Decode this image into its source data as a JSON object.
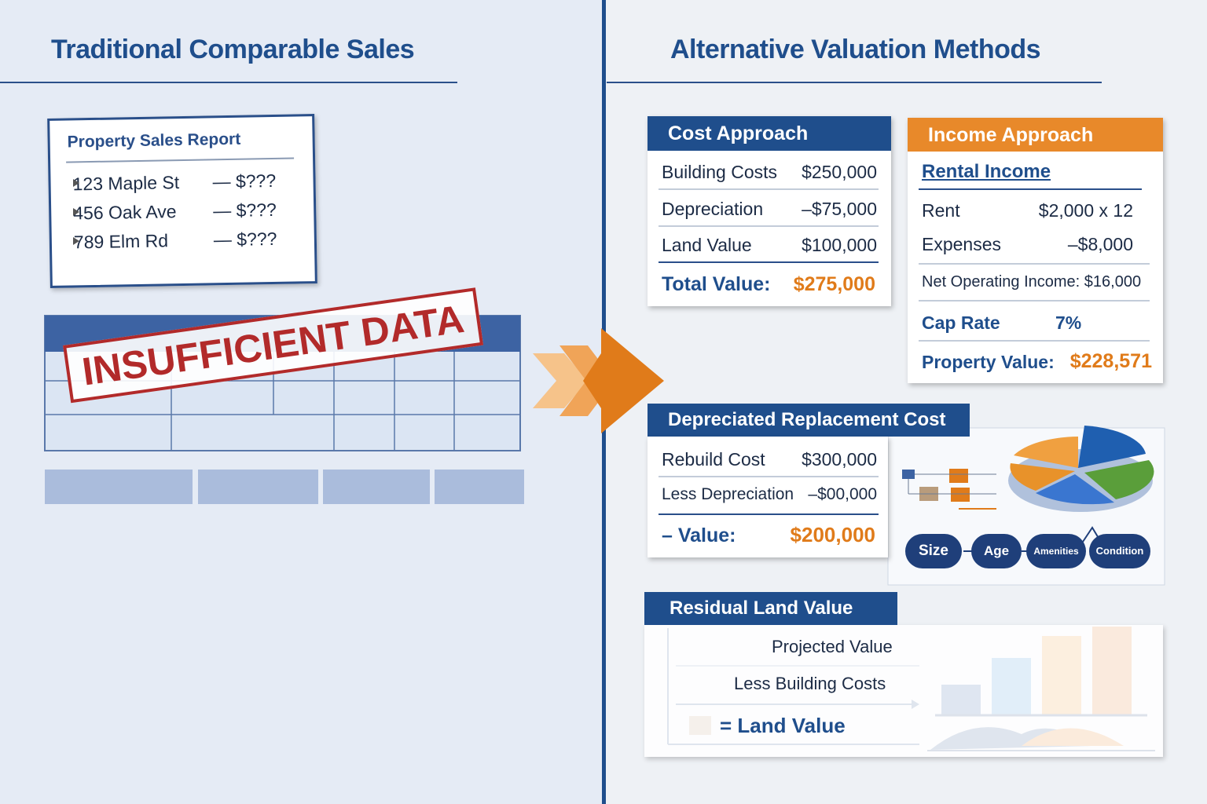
{
  "left": {
    "title": "Traditional Comparable Sales",
    "report": {
      "title": "Property Sales Report",
      "rows": [
        {
          "address": "123 Maple St",
          "price": "— $???"
        },
        {
          "address": "456 Oak Ave",
          "price": "— $???"
        },
        {
          "address": "789 Elm Rd",
          "price": "— $???"
        }
      ]
    },
    "stamp": "INSUFFICIENT DATA"
  },
  "right": {
    "title": "Alternative Valuation Methods",
    "cost_approach": {
      "title": "Cost Approach",
      "rows": [
        [
          "Building Costs",
          "$250,000"
        ],
        [
          "Depreciation",
          "–$75,000"
        ],
        [
          "Land Value",
          "$100,000"
        ]
      ],
      "total": [
        "Total Value:",
        "$275,000"
      ]
    },
    "income_approach": {
      "title": "Income Approach",
      "subtitle": "Rental Income",
      "rows": [
        [
          "Rent",
          "$2,000 x 12"
        ],
        [
          "Expenses",
          "–$8,000"
        ]
      ],
      "noi": "Net Operating Income: $16,000",
      "cap_rate": [
        "Cap Rate",
        "7%"
      ],
      "total": [
        "Property Value:",
        "$228,571"
      ]
    },
    "depreciated_replacement_cost": {
      "title": "Depreciated Replacement Cost",
      "rows": [
        [
          "Rebuild Cost",
          "$300,000"
        ],
        [
          "Less Depreciation",
          "–$00,000"
        ]
      ],
      "total": [
        "– Value:",
        "$200,000"
      ],
      "factors": [
        "Size",
        "Age",
        "Amenities",
        "Condition"
      ]
    },
    "residual_land_value": {
      "title": "Residual Land Value",
      "items": [
        "Projected Value",
        "Less Building Costs",
        "= Land Value"
      ]
    }
  }
}
